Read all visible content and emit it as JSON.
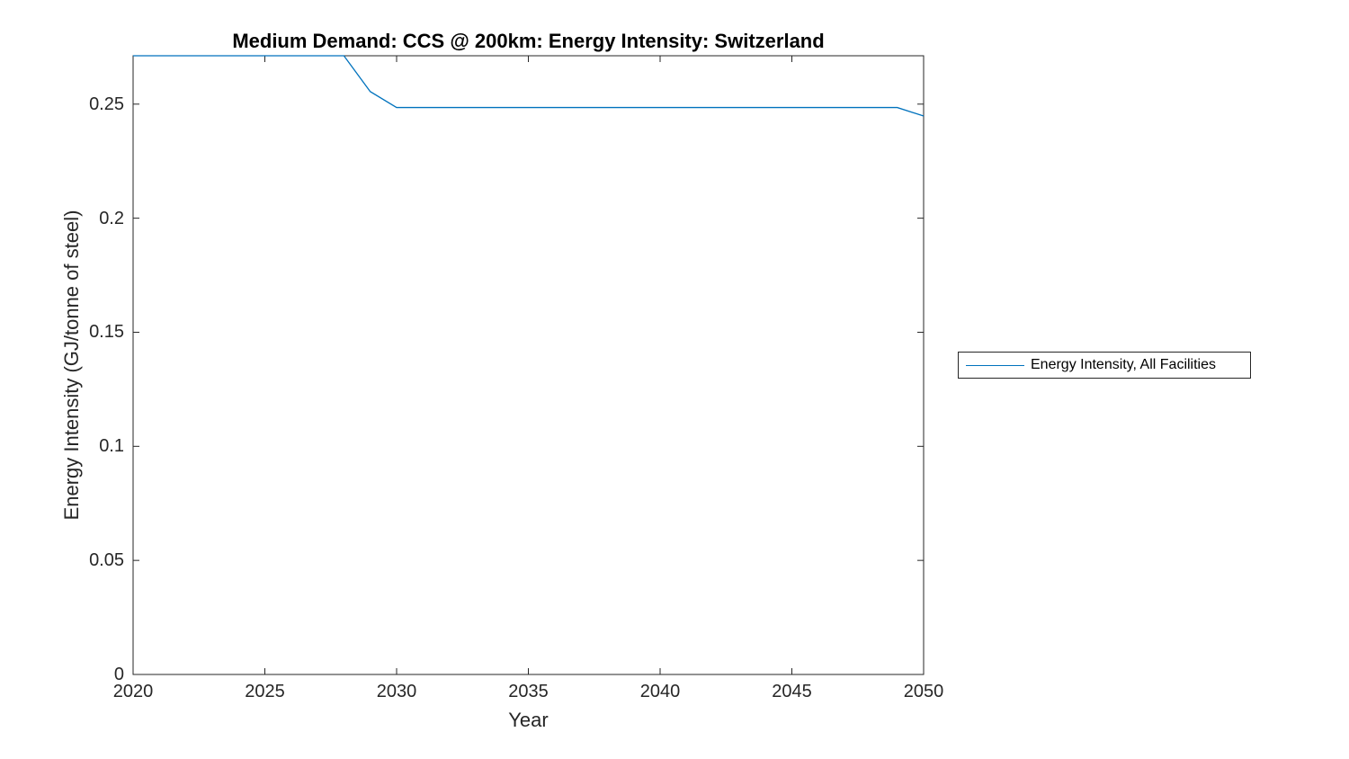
{
  "window": {
    "background_color": "#ffffff"
  },
  "colors": {
    "line": "#0072BD",
    "axes": "#262626",
    "title_text": "#000000",
    "legend_border": "#262626",
    "legend_text": "#000000"
  },
  "legend": {
    "position": "right-outside",
    "entries": [
      {
        "label": "Energy Intensity, All Facilities",
        "color": "#0072BD"
      }
    ]
  },
  "chart_data": {
    "type": "line",
    "title": "Medium Demand: CCS @ 200km: Energy Intensity: Switzerland",
    "xlabel": "Year",
    "ylabel": "Energy Intensity (GJ/tonne of steel)",
    "xlim": [
      2020,
      2050
    ],
    "ylim": [
      0,
      0.2712
    ],
    "xticks": [
      2020,
      2025,
      2030,
      2035,
      2040,
      2045,
      2050
    ],
    "xtick_labels": [
      "2020",
      "2025",
      "2030",
      "2035",
      "2040",
      "2045",
      "2050"
    ],
    "yticks": [
      0,
      0.05,
      0.1,
      0.15,
      0.2,
      0.25
    ],
    "ytick_labels": [
      "0",
      "0.05",
      "0.1",
      "0.15",
      "0.2",
      "0.25"
    ],
    "grid": false,
    "box": true,
    "tick_direction": "in",
    "legend_position": "right-outside",
    "series": [
      {
        "name": "Energy Intensity, All Facilities",
        "color": "#0072BD",
        "x": [
          2020,
          2021,
          2022,
          2023,
          2024,
          2025,
          2026,
          2027,
          2028,
          2029,
          2030,
          2031,
          2032,
          2033,
          2034,
          2035,
          2036,
          2037,
          2038,
          2039,
          2040,
          2041,
          2042,
          2043,
          2044,
          2045,
          2046,
          2047,
          2048,
          2049,
          2050
        ],
        "y": [
          0.2712,
          0.2712,
          0.2712,
          0.2712,
          0.2712,
          0.2712,
          0.2712,
          0.2712,
          0.2712,
          0.2555,
          0.2485,
          0.2485,
          0.2485,
          0.2485,
          0.2485,
          0.2485,
          0.2485,
          0.2485,
          0.2485,
          0.2485,
          0.2485,
          0.2485,
          0.2485,
          0.2485,
          0.2485,
          0.2485,
          0.2485,
          0.2485,
          0.2485,
          0.2485,
          0.2448
        ]
      }
    ]
  }
}
